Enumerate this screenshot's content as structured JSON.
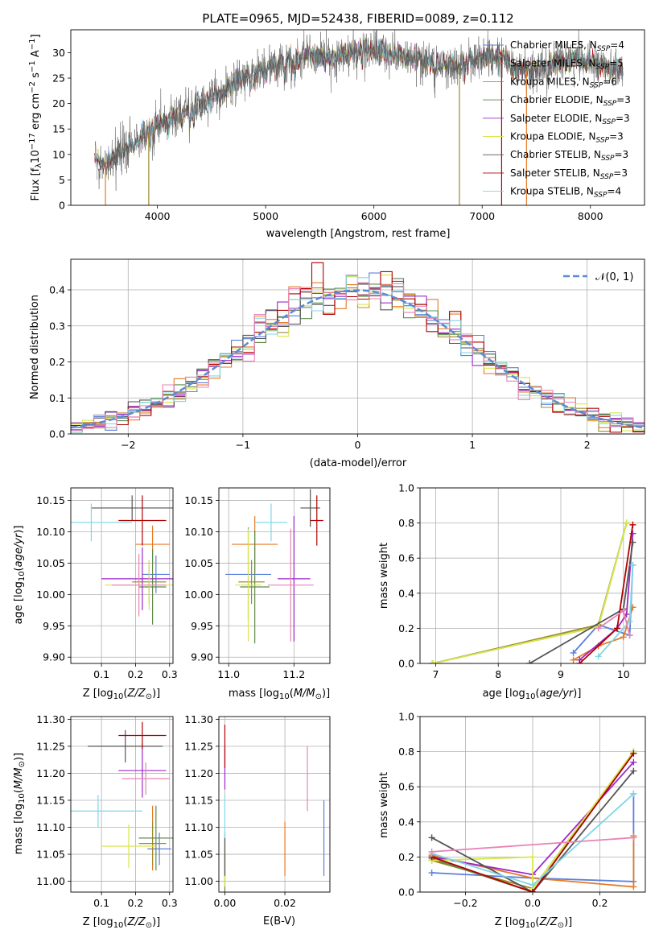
{
  "figure": {
    "title": "PLATE=0965, MJD=52438, FIBERID=0089, z=0.112"
  },
  "palette": [
    "#5b7fdc",
    "#e57a26",
    "#a08b2a",
    "#5e8a4a",
    "#9c27c8",
    "#d9e64a",
    "#555555",
    "#b00000",
    "#7ed7e6",
    "#e882b6"
  ],
  "chart_data": [
    {
      "id": "spectrum",
      "type": "line",
      "title": "PLATE=0965, MJD=52438, FIBERID=0089, z=0.112",
      "xlabel": "wavelength [Angstrom, rest frame]",
      "ylabel": "Flux [f_λ 10^-17 erg cm^-2 s^-1 A^-1]",
      "xlim": [
        3200,
        8500
      ],
      "ylim": [
        0,
        34.5
      ],
      "xticks": [
        4000,
        5000,
        6000,
        7000,
        8000
      ],
      "yticks": [
        0,
        5,
        10,
        15,
        20,
        25,
        30
      ],
      "grid": false,
      "legend_position": "right",
      "continuum_x": [
        3420,
        3500,
        3600,
        3700,
        3800,
        3900,
        4000,
        4100,
        4200,
        4300,
        4400,
        4500,
        4600,
        4700,
        4800,
        4900,
        5000,
        5100,
        5200,
        5300,
        5400,
        5500,
        5600,
        5700,
        5800,
        5900,
        6000,
        6100,
        6200,
        6300,
        6400,
        6500,
        6600,
        6700,
        6800,
        6900,
        7000,
        7100,
        7200,
        7300,
        7400,
        7500,
        7600,
        7700,
        7800,
        7900,
        8000,
        8100,
        8200,
        8300
      ],
      "continuum_y": [
        9,
        8,
        10,
        11,
        12,
        14,
        16,
        17,
        18,
        19,
        20,
        21,
        22,
        24,
        25,
        26,
        27,
        28,
        28,
        29,
        29.5,
        29,
        28.5,
        29.5,
        30,
        30.5,
        30.5,
        30,
        29.5,
        29,
        28.5,
        28,
        28,
        27.5,
        27.5,
        28,
        29,
        29.5,
        29,
        27,
        26.5,
        26.5,
        27.5,
        28,
        28.5,
        28.5,
        28,
        27.5,
        27,
        27
      ],
      "series": [
        {
          "name": "Chabrier MILES, N_SSP=4",
          "name_sub": "SSP",
          "name_val": "=4",
          "name_pre": "Chabrier MILES, N"
        },
        {
          "name": "Salpeter MILES, N_SSP=5",
          "name_sub": "SSP",
          "name_val": "=5",
          "name_pre": "Salpeter MILES, N"
        },
        {
          "name": "Kroupa MILES, N_SSP=6",
          "name_sub": "SSP",
          "name_val": "=6",
          "name_pre": "Kroupa MILES, N"
        },
        {
          "name": "Chabrier ELODIE, N_SSP=3",
          "name_sub": "SSP",
          "name_val": "=3",
          "name_pre": "Chabrier ELODIE, N"
        },
        {
          "name": "Salpeter ELODIE, N_SSP=3",
          "name_sub": "SSP",
          "name_val": "=3",
          "name_pre": "Salpeter ELODIE, N"
        },
        {
          "name": "Kroupa ELODIE, N_SSP=3",
          "name_sub": "SSP",
          "name_val": "=3",
          "name_pre": "Kroupa ELODIE, N"
        },
        {
          "name": "Chabrier STELIB, N_SSP=3",
          "name_sub": "SSP",
          "name_val": "=3",
          "name_pre": "Chabrier STELIB, N"
        },
        {
          "name": "Salpeter STELIB, N_SSP=3",
          "name_sub": "SSP",
          "name_val": "=3",
          "name_pre": "Salpeter STELIB, N"
        },
        {
          "name": "Kroupa STELIB, N_SSP=4",
          "name_sub": "SSP",
          "name_val": "=4",
          "name_pre": "Kroupa STELIB, N"
        }
      ]
    },
    {
      "id": "residuals",
      "type": "line",
      "xlabel": "(data-model)/error",
      "ylabel": "Normed distribution",
      "xlim": [
        -2.5,
        2.5
      ],
      "ylim": [
        0,
        0.485
      ],
      "xticks": [
        -2,
        -1,
        0,
        1,
        2
      ],
      "yticks": [
        0.0,
        0.1,
        0.2,
        0.3,
        0.4
      ],
      "grid": true,
      "legend_position": "top-right",
      "reference_curve": {
        "name": "𝒩(0, 1)",
        "mean": 0,
        "sigma": 1
      },
      "histogram_bin_width": 0.1,
      "histogram_count": 10
    },
    {
      "id": "age-vs-z",
      "type": "scatter",
      "xlabel": "Z [log10(Z/Z⊙)]",
      "ylabel": "age [log10(age/yr)]",
      "xlim": [
        0.01,
        0.31
      ],
      "ylim": [
        9.89,
        10.17
      ],
      "xticks": [
        0.1,
        0.2,
        0.3
      ],
      "yticks": [
        9.9,
        9.95,
        10.0,
        10.05,
        10.1,
        10.15
      ],
      "grid": true,
      "points": [
        {
          "x": 0.26,
          "xerr": 0.04,
          "y": 10.032,
          "yerr": 0.03
        },
        {
          "x": 0.25,
          "xerr": 0.05,
          "y": 10.08,
          "yerr": 0.03
        },
        {
          "x": 0.24,
          "xerr": 0.05,
          "y": 10.02,
          "yerr": 0.035
        },
        {
          "x": 0.25,
          "xerr": 0.04,
          "y": 10.012,
          "yerr": 0.06
        },
        {
          "x": 0.22,
          "xerr": 0.12,
          "y": 10.025,
          "yerr": 0.05
        },
        {
          "x": 0.24,
          "xerr": 0.13,
          "y": 10.015,
          "yerr": 0.04
        },
        {
          "x": 0.19,
          "xerr": 0.12,
          "y": 10.138,
          "yerr": 0.02
        },
        {
          "x": 0.22,
          "xerr": 0.07,
          "y": 10.118,
          "yerr": 0.04
        },
        {
          "x": 0.07,
          "xerr": 0.12,
          "y": 10.115,
          "yerr": 0.03
        },
        {
          "x": 0.21,
          "xerr": 0.08,
          "y": 10.015,
          "yerr": 0.05
        }
      ]
    },
    {
      "id": "age-vs-mass",
      "type": "scatter",
      "xlabel": "mass [log10(M/M⊙)]",
      "ylabel": "",
      "xlim": [
        10.97,
        11.31
      ],
      "ylim": [
        9.89,
        10.17
      ],
      "xticks": [
        11.0,
        11.2
      ],
      "yticks": [
        9.9,
        9.95,
        10.0,
        10.05,
        10.1,
        10.15
      ],
      "grid": true,
      "points": [
        {
          "x": 11.06,
          "xerr": 0.07,
          "y": 10.032,
          "yerr": 0.075
        },
        {
          "x": 11.08,
          "xerr": 0.07,
          "y": 10.08,
          "yerr": 0.045
        },
        {
          "x": 11.07,
          "xerr": 0.04,
          "y": 10.02,
          "yerr": 0.035
        },
        {
          "x": 11.08,
          "xerr": 0.045,
          "y": 10.012,
          "yerr": 0.09
        },
        {
          "x": 11.2,
          "xerr": 0.05,
          "y": 10.025,
          "yerr": 0.1
        },
        {
          "x": 11.06,
          "xerr": 0.04,
          "y": 10.015,
          "yerr": 0.09
        },
        {
          "x": 11.25,
          "xerr": 0.03,
          "y": 10.138,
          "yerr": 0.03
        },
        {
          "x": 11.27,
          "xerr": 0.02,
          "y": 10.118,
          "yerr": 0.04
        },
        {
          "x": 11.13,
          "xerr": 0.05,
          "y": 10.115,
          "yerr": 0.03
        },
        {
          "x": 11.19,
          "xerr": 0.07,
          "y": 10.015,
          "yerr": 0.09
        }
      ]
    },
    {
      "id": "weight-vs-age",
      "type": "line",
      "xlabel": "age [log10(age/yr)]",
      "ylabel": "mass weight",
      "xlim": [
        6.75,
        10.35
      ],
      "ylim": [
        0,
        1.0
      ],
      "xticks": [
        7,
        8,
        9,
        10
      ],
      "yticks": [
        0.0,
        0.2,
        0.4,
        0.6,
        0.8,
        1.0
      ],
      "grid": true,
      "series": [
        {
          "x": [
            9.2,
            9.6,
            10.1,
            10.15
          ],
          "y": [
            0.06,
            0.22,
            0.16,
            0.56
          ]
        },
        {
          "x": [
            9.2,
            9.6,
            10.0,
            10.15
          ],
          "y": [
            0.02,
            0.1,
            0.15,
            0.32
          ]
        },
        {
          "x": [
            6.95,
            9.6,
            10.05
          ],
          "y": [
            0.0,
            0.22,
            0.8
          ]
        },
        {
          "x": [
            6.95,
            9.6,
            10.05
          ],
          "y": [
            0.0,
            0.21,
            0.8
          ]
        },
        {
          "x": [
            9.3,
            9.9,
            10.05,
            10.15
          ],
          "y": [
            0.02,
            0.2,
            0.28,
            0.74
          ]
        },
        {
          "x": [
            6.95,
            9.6,
            10.05
          ],
          "y": [
            0.0,
            0.21,
            0.8
          ]
        },
        {
          "x": [
            8.5,
            10.0,
            10.15
          ],
          "y": [
            0.0,
            0.31,
            0.69
          ]
        },
        {
          "x": [
            9.3,
            9.9,
            10.15
          ],
          "y": [
            0.0,
            0.2,
            0.79
          ]
        },
        {
          "x": [
            9.6,
            10.1,
            10.15
          ],
          "y": [
            0.04,
            0.24,
            0.56
          ]
        },
        {
          "x": [
            9.6,
            10.0,
            10.1
          ],
          "y": [
            0.2,
            0.3,
            0.16
          ]
        }
      ]
    },
    {
      "id": "mass-vs-z",
      "type": "scatter",
      "xlabel": "Z [log10(Z/Z⊙)]",
      "ylabel": "mass [log10(M/M⊙)]",
      "xlim": [
        0.01,
        0.31
      ],
      "ylim": [
        10.98,
        11.305
      ],
      "xticks": [
        0.1,
        0.2,
        0.3
      ],
      "yticks": [
        11.0,
        11.05,
        11.1,
        11.15,
        11.2,
        11.25,
        11.3
      ],
      "grid": true,
      "points": [
        {
          "x": 0.27,
          "xerr": 0.035,
          "y": 11.06,
          "yerr": 0.03
        },
        {
          "x": 0.25,
          "xerr": 0.04,
          "y": 11.08,
          "yerr": 0.06
        },
        {
          "x": 0.25,
          "xerr": 0.04,
          "y": 11.07,
          "yerr": 0.04
        },
        {
          "x": 0.26,
          "xerr": 0.05,
          "y": 11.08,
          "yerr": 0.06
        },
        {
          "x": 0.22,
          "xerr": 0.07,
          "y": 11.205,
          "yerr": 0.05
        },
        {
          "x": 0.18,
          "xerr": 0.08,
          "y": 11.065,
          "yerr": 0.04
        },
        {
          "x": 0.17,
          "xerr": 0.11,
          "y": 11.25,
          "yerr": 0.03
        },
        {
          "x": 0.22,
          "xerr": 0.07,
          "y": 11.27,
          "yerr": 0.025
        },
        {
          "x": 0.09,
          "xerr": 0.13,
          "y": 11.13,
          "yerr": 0.03
        },
        {
          "x": 0.23,
          "xerr": 0.07,
          "y": 11.19,
          "yerr": 0.03
        }
      ]
    },
    {
      "id": "mass-vs-ebv",
      "type": "scatter",
      "xlabel": "E(B-V)",
      "ylabel": "",
      "xlim": [
        -0.002,
        0.035
      ],
      "ylim": [
        10.98,
        11.305
      ],
      "xticks": [
        0.0,
        0.02
      ],
      "yticks": [
        11.0,
        11.05,
        11.1,
        11.15,
        11.2,
        11.25,
        11.3
      ],
      "grid": true,
      "points": [
        {
          "x": 0.033,
          "xerr": 0,
          "y": 11.08,
          "yerr": 0.07
        },
        {
          "x": 0.02,
          "xerr": 0,
          "y": 11.06,
          "yerr": 0.05
        },
        {
          "x": 0.0,
          "xerr": 0,
          "y": 11.02,
          "yerr": 0.03
        },
        {
          "x": 0.0,
          "xerr": 0,
          "y": 11.03,
          "yerr": 0.05
        },
        {
          "x": 0.0,
          "xerr": 0,
          "y": 11.21,
          "yerr": 0.04
        },
        {
          "x": 0.0,
          "xerr": 0,
          "y": 11.03,
          "yerr": 0.04
        },
        {
          "x": 0.0,
          "xerr": 0,
          "y": 11.05,
          "yerr": 0.04
        },
        {
          "x": 0.0,
          "xerr": 0,
          "y": 11.25,
          "yerr": 0.04
        },
        {
          "x": 0.0,
          "xerr": 0,
          "y": 11.12,
          "yerr": 0.04
        },
        {
          "x": 0.0275,
          "xerr": 0,
          "y": 11.19,
          "yerr": 0.06
        }
      ]
    },
    {
      "id": "weight-vs-z",
      "type": "line",
      "xlabel": "Z [log10(Z/Z⊙)]",
      "ylabel": "mass weight",
      "xlim": [
        -0.335,
        0.335
      ],
      "ylim": [
        0,
        1.0
      ],
      "xticks": [
        -0.2,
        0.0,
        0.2
      ],
      "yticks": [
        0.0,
        0.2,
        0.4,
        0.6,
        0.8,
        1.0
      ],
      "grid": true,
      "series": [
        {
          "x": [
            -0.3,
            0.0,
            0.3,
            0.3
          ],
          "y": [
            0.11,
            0.08,
            0.06,
            0.56
          ]
        },
        {
          "x": [
            -0.3,
            0.0,
            0.3,
            0.3
          ],
          "y": [
            0.21,
            0.08,
            0.03,
            0.32
          ]
        },
        {
          "x": [
            -0.3,
            0.0,
            0.3
          ],
          "y": [
            0.18,
            0.02,
            0.8
          ]
        },
        {
          "x": [
            -0.3,
            0.0,
            0.3
          ],
          "y": [
            0.19,
            0.0,
            0.8
          ]
        },
        {
          "x": [
            -0.3,
            0.0,
            0.3
          ],
          "y": [
            0.2,
            0.1,
            0.74
          ]
        },
        {
          "x": [
            -0.3,
            0.0,
            0.0,
            0.3
          ],
          "y": [
            0.18,
            0.2,
            0.02,
            0.8
          ]
        },
        {
          "x": [
            -0.3,
            0.0,
            0.3
          ],
          "y": [
            0.31,
            0.0,
            0.69
          ]
        },
        {
          "x": [
            -0.3,
            0.0,
            0.3
          ],
          "y": [
            0.2,
            0.0,
            0.79
          ]
        },
        {
          "x": [
            -0.3,
            0.0,
            0.3
          ],
          "y": [
            0.22,
            0.04,
            0.56
          ]
        },
        {
          "x": [
            -0.3,
            0.3
          ],
          "y": [
            0.23,
            0.31
          ]
        }
      ]
    }
  ]
}
